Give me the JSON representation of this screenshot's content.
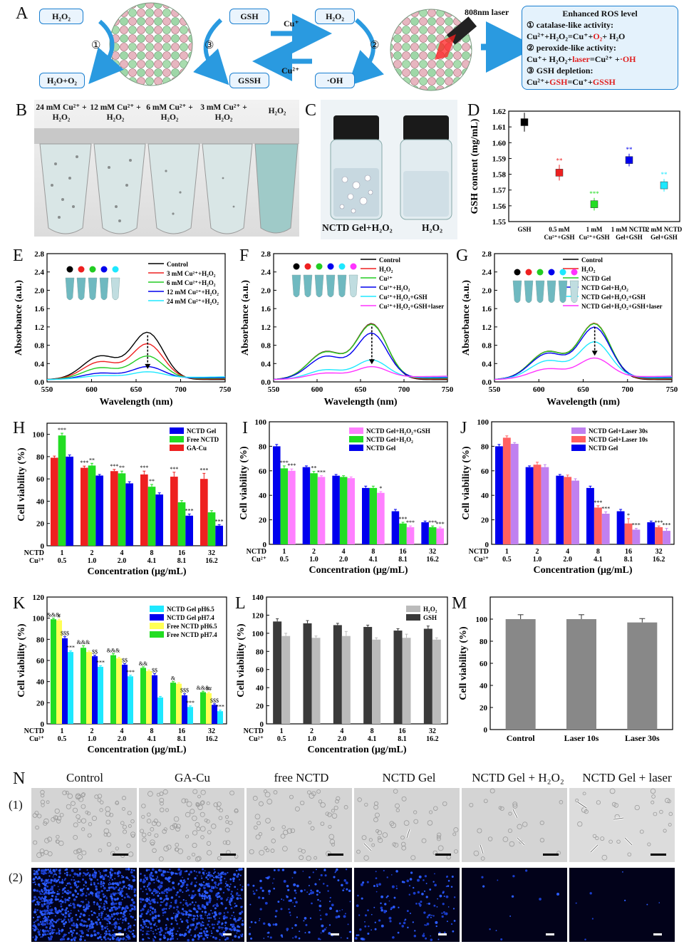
{
  "panels": {
    "A": "A",
    "B": "B",
    "C": "C",
    "D": "D",
    "E": "E",
    "F": "F",
    "G": "G",
    "H": "H",
    "I": "I",
    "J": "J",
    "K": "K",
    "L": "L",
    "M": "M",
    "N": "N"
  },
  "schematic": {
    "h2o2_left": "H₂O₂",
    "h2o_o2": "H₂O+O₂",
    "step1": "①",
    "step3": "③",
    "step2": "②",
    "gsh": "GSH",
    "gssh": "GSSH",
    "h2o2_right": "H₂O₂",
    "oh": "·OH",
    "cu_plus": "Cu⁺",
    "cu_2plus": "Cu²⁺",
    "laser": "808nm laser",
    "ros_title": "Enhanced ROS level",
    "ros_1": "① catalase-like activity:",
    "ros_1_eq_a": "Cu²⁺+H₂O₂=Cu⁺+",
    "ros_1_eq_red": "O₂",
    "ros_1_eq_b": "+ H₂O",
    "ros_2": "② peroxide-like activity:",
    "ros_2_eq_a": "Cu⁺+ H₂O₂+",
    "ros_2_eq_red": "laser",
    "ros_2_eq_b": "=Cu²⁺ +",
    "ros_2_eq_red2": "·OH",
    "ros_3": "③ GSH depletion:",
    "ros_3_eq_a": "Cu²⁺+",
    "ros_3_eq_red": "GSH",
    "ros_3_eq_b": "=Cu⁺+",
    "ros_3_eq_red2": "GSSH"
  },
  "panelB": {
    "labels": [
      "24 mM Cu²⁺ + H₂O₂",
      "12 mM Cu²⁺ + H₂O₂",
      "6 mM Cu²⁺ + H₂O₂",
      "3 mM Cu²⁺ + H₂O₂",
      "H₂O₂"
    ]
  },
  "panelC": {
    "left": "NCTD Gel+H₂O₂",
    "right": "H₂O₂"
  },
  "micrograph": {
    "labels": [
      "Control",
      "GA-Cu",
      "free NCTD",
      "NCTD Gel",
      "NCTD Gel + H₂O₂",
      "NCTD Gel + laser"
    ],
    "row1": "(1)",
    "row2": "(2)"
  },
  "colors": {
    "blue": "#0000ee",
    "green": "#22dd22",
    "red": "#ee2020",
    "pink": "#ff80ff",
    "cyan": "#1ee8ff",
    "yellow": "#ffff55",
    "salmon": "#ff6060",
    "lilac": "#c080f0",
    "darkgray": "#3a3a3a",
    "lightgray": "#bbbbbb",
    "gray": "#888888",
    "accent": "#1a7fd0"
  },
  "chart_data": [
    {
      "id": "D",
      "type": "scatter",
      "ylabel": "GSH content (mg/mL)",
      "ylim": [
        1.55,
        1.62
      ],
      "yticks": [
        "1.55",
        "1.56",
        "1.57",
        "1.58",
        "1.59",
        "1.60",
        "1.61",
        "1.62"
      ],
      "categories": [
        "GSH",
        "0.5 mM Cu²⁺+GSH",
        "1 mM Cu²⁺+GSH",
        "1 mM NCTD Gel+GSH",
        "2 mM NCTD Gel+GSH"
      ],
      "values": [
        1.613,
        1.581,
        1.561,
        1.589,
        1.573
      ],
      "errors": [
        0.006,
        0.005,
        0.004,
        0.004,
        0.004
      ],
      "sig": [
        "",
        "**",
        "***",
        "**",
        "**"
      ],
      "colors": [
        "#000000",
        "#ee2020",
        "#22dd22",
        "#0000ee",
        "#1ee8ff"
      ]
    },
    {
      "id": "E",
      "type": "line",
      "xlabel": "Wavelength (nm)",
      "ylabel": "Absorbance (a.u.)",
      "xlim": [
        550,
        750
      ],
      "ylim": [
        0,
        2.8
      ],
      "xticks": [
        "550",
        "600",
        "650",
        "700",
        "750"
      ],
      "yticks": [
        "0.0",
        "0.4",
        "0.8",
        "1.2",
        "1.6",
        "2.0",
        "2.4",
        "2.8"
      ],
      "series": [
        {
          "name": "Control",
          "color": "#000000",
          "scale": 1.2
        },
        {
          "name": "3 mM Cu²⁺+H₂O₂",
          "color": "#ee2020",
          "scale": 0.9
        },
        {
          "name": "6 mM Cu²⁺+H₂O₂",
          "color": "#22cc22",
          "scale": 0.58
        },
        {
          "name": "12 mM Cu²⁺+H₂O₂",
          "color": "#0000ee",
          "scale": 0.3
        },
        {
          "name": "24 mM Cu²⁺+H₂O₂",
          "color": "#1ee8ff",
          "scale": 0.16
        }
      ],
      "dots": [
        "#000000",
        "#ee2020",
        "#22cc22",
        "#0000ee",
        "#1ee8ff"
      ]
    },
    {
      "id": "F",
      "type": "line",
      "xlabel": "Wavelength (nm)",
      "ylabel": "Absorbance (a.u.)",
      "xlim": [
        550,
        750
      ],
      "ylim": [
        0,
        2.8
      ],
      "xticks": [
        "550",
        "600",
        "650",
        "700",
        "750"
      ],
      "yticks": [
        "0.0",
        "0.4",
        "0.8",
        "1.2",
        "1.6",
        "2.0",
        "2.4",
        "2.8"
      ],
      "series": [
        {
          "name": "Control",
          "color": "#000000",
          "scale": 1.42
        },
        {
          "name": "H₂O₂",
          "color": "#ee2020",
          "scale": 1.4
        },
        {
          "name": "Cu²⁺",
          "color": "#22cc22",
          "scale": 1.38
        },
        {
          "name": "Cu²⁺+H₂O₂",
          "color": "#0000ee",
          "scale": 1.15
        },
        {
          "name": "Cu²⁺+H₂O₂+GSH",
          "color": "#1ee8ff",
          "scale": 0.46
        },
        {
          "name": "Cu²⁺+H₂O₂+GSH+laser",
          "color": "#ff33ff",
          "scale": 0.28
        }
      ],
      "dots": [
        "#000000",
        "#ee2020",
        "#22cc22",
        "#0000ee",
        "#1ee8ff",
        "#ff33ff"
      ]
    },
    {
      "id": "G",
      "type": "line",
      "xlabel": "Wavelength (nm)",
      "ylabel": "Absorbance (a.u.)",
      "xlim": [
        550,
        750
      ],
      "ylim": [
        0,
        2.8
      ],
      "xticks": [
        "550",
        "600",
        "650",
        "700",
        "750"
      ],
      "yticks": [
        "0.0",
        "0.4",
        "0.8",
        "1.2",
        "1.6",
        "2.0",
        "2.4",
        "2.8"
      ],
      "series": [
        {
          "name": "Control",
          "color": "#000000",
          "scale": 1.42
        },
        {
          "name": "H₂O₂",
          "color": "#ee2020",
          "scale": 1.42
        },
        {
          "name": "NCTD Gel",
          "color": "#22cc22",
          "scale": 1.4
        },
        {
          "name": "NCTD Gel+H₂O₂",
          "color": "#0000ee",
          "scale": 1.3
        },
        {
          "name": "NCTD Gel+H₂O₂+GSH",
          "color": "#1ee8ff",
          "scale": 0.92
        },
        {
          "name": "NCTD Gel+H₂O₂+GSH+laser",
          "color": "#ff33ff",
          "scale": 0.5
        }
      ],
      "dots": [
        "#000000",
        "#ee2020",
        "#22cc22",
        "#0000ee",
        "#1ee8ff",
        "#ff33ff"
      ]
    },
    {
      "id": "H",
      "type": "bar",
      "xlabel": "Concentration (μg/mL)",
      "ylabel": "Cell viability (%)",
      "ylim": [
        0,
        110
      ],
      "yticks": [
        "0",
        "20",
        "40",
        "60",
        "80",
        "100"
      ],
      "row1_label": "NCTD",
      "row2_label": "Cu²⁺",
      "categories": [
        "1",
        "2",
        "4",
        "8",
        "16",
        "32"
      ],
      "categories2": [
        "0.5",
        "1.0",
        "2.0",
        "4.1",
        "8.1",
        "16.2"
      ],
      "series": [
        {
          "name": "GA-Cu",
          "color": "#ee2020",
          "values": [
            79,
            70,
            67,
            64,
            62,
            60
          ],
          "errors": [
            1.5,
            1.5,
            1.5,
            3,
            4,
            5
          ],
          "sig": [
            "",
            "***",
            "***",
            "***",
            "***",
            "***"
          ]
        },
        {
          "name": "Free NCTD",
          "color": "#22dd22",
          "values": [
            99,
            72,
            65,
            53,
            39,
            30
          ],
          "errors": [
            2,
            2,
            2,
            2,
            1.5,
            1.5
          ],
          "sig": [
            "***",
            "**",
            "**",
            "**",
            "",
            ""
          ]
        },
        {
          "name": "NCTD Gel",
          "color": "#0000ee",
          "values": [
            80,
            63,
            56,
            46,
            27,
            18
          ],
          "errors": [
            1.5,
            1,
            1.5,
            1.5,
            1.5,
            1
          ],
          "sig": [
            "",
            "",
            "",
            "",
            "***",
            "***"
          ]
        }
      ],
      "legend_order": [
        "NCTD Gel",
        "Free NCTD",
        "GA-Cu"
      ]
    },
    {
      "id": "I",
      "type": "bar",
      "xlabel": "Concentration (μg/mL)",
      "ylabel": "Cell viability (%)",
      "ylim": [
        0,
        100
      ],
      "yticks": [
        "0",
        "20",
        "40",
        "60",
        "80",
        "100"
      ],
      "row1_label": "NCTD",
      "row2_label": "Cu²⁺",
      "categories": [
        "1",
        "2",
        "4",
        "8",
        "16",
        "32"
      ],
      "categories2": [
        "0.5",
        "1.0",
        "2.0",
        "4.1",
        "8.1",
        "16.2"
      ],
      "series": [
        {
          "name": "NCTD Gel",
          "color": "#0000ee",
          "values": [
            80,
            63,
            56,
            46,
            27,
            18
          ],
          "errors": [
            1.5,
            1,
            1,
            1.5,
            1.5,
            1
          ],
          "sig": [
            "",
            "",
            "",
            "",
            "",
            ""
          ]
        },
        {
          "name": "NCTD Gel+H₂O₂",
          "color": "#22dd22",
          "values": [
            62,
            58,
            55,
            46,
            17,
            14
          ],
          "errors": [
            2,
            1.5,
            1,
            1.5,
            1,
            1
          ],
          "sig": [
            "***",
            "**",
            "",
            "",
            "***",
            "***"
          ]
        },
        {
          "name": "NCTD Gel+H₂O₂+GSH",
          "color": "#ff80ff",
          "values": [
            60,
            55,
            54,
            42,
            14,
            13
          ],
          "errors": [
            1.5,
            1,
            1,
            1,
            1,
            1
          ],
          "sig": [
            "***",
            "***",
            "",
            "*",
            "***",
            "***"
          ]
        }
      ],
      "legend_order": [
        "NCTD Gel+H₂O₂+GSH",
        "NCTD Gel+H₂O₂",
        "NCTD Gel"
      ]
    },
    {
      "id": "J",
      "type": "bar",
      "xlabel": "Concentration (μg/mL)",
      "ylabel": "Cell viability (%)",
      "ylim": [
        0,
        100
      ],
      "yticks": [
        "0",
        "20",
        "40",
        "60",
        "80",
        "100"
      ],
      "row1_label": "NCTD",
      "row2_label": "Cu²⁺",
      "categories": [
        "1",
        "2",
        "4",
        "8",
        "16",
        "32"
      ],
      "categories2": [
        "0.5",
        "1.0",
        "2.0",
        "4.1",
        "8.1",
        "16.2"
      ],
      "series": [
        {
          "name": "NCTD Gel",
          "color": "#0000ee",
          "values": [
            80,
            63,
            56,
            46,
            27,
            18
          ],
          "errors": [
            1.5,
            1,
            1,
            1.5,
            1.5,
            1
          ],
          "sig": [
            "",
            "",
            "",
            "",
            "",
            ""
          ]
        },
        {
          "name": "NCTD Gel+Laser 10s",
          "color": "#ff6060",
          "values": [
            87,
            65,
            55,
            30,
            17,
            14
          ],
          "errors": [
            1.5,
            2,
            1.5,
            1.5,
            4,
            1
          ],
          "sig": [
            "",
            "",
            "",
            "***",
            "*",
            "***"
          ]
        },
        {
          "name": "NCTD Gel+Laser 30s",
          "color": "#c080f0",
          "values": [
            82,
            63,
            52,
            25,
            12,
            11
          ],
          "errors": [
            1,
            2,
            1.5,
            1.5,
            1,
            2
          ],
          "sig": [
            "",
            "",
            "",
            "***",
            "***",
            "***"
          ]
        }
      ],
      "legend_order": [
        "NCTD Gel+Laser 30s",
        "NCTD Gel+Laser 10s",
        "NCTD Gel"
      ]
    },
    {
      "id": "K",
      "type": "bar",
      "xlabel": "Concentration (μg/mL)",
      "ylabel": "Cell viability (%)",
      "ylim": [
        0,
        120
      ],
      "yticks": [
        "0",
        "20",
        "40",
        "60",
        "80",
        "100",
        "120"
      ],
      "row1_label": "NCTD",
      "row2_label": "Cu²⁺",
      "categories": [
        "1",
        "2",
        "4",
        "8",
        "16",
        "32"
      ],
      "categories2": [
        "0.5",
        "1.0",
        "2.0",
        "4.1",
        "8.1",
        "16.2"
      ],
      "series": [
        {
          "name": "Free NCTD pH7.4",
          "color": "#22dd22",
          "values": [
            99,
            72,
            65,
            53,
            39,
            30
          ],
          "errors": [
            1,
            2,
            1.5,
            1,
            1,
            1
          ],
          "sig": [
            "&&&",
            "&&&",
            "&&&",
            "&&",
            "&",
            "&&&"
          ]
        },
        {
          "name": "Free NCTD pH6.5",
          "color": "#ffff55",
          "values": [
            98,
            68,
            62,
            50,
            38,
            29
          ],
          "errors": [
            1,
            1,
            1,
            1,
            1,
            1
          ],
          "sig": [
            "#",
            "",
            "",
            "",
            "",
            "##"
          ]
        },
        {
          "name": "NCTD Gel pH7.4",
          "color": "#0000ee",
          "values": [
            81,
            64,
            56,
            46,
            27,
            18
          ],
          "errors": [
            1.5,
            1,
            1,
            1.5,
            1.5,
            1
          ],
          "sig": [
            "$$$",
            "$$",
            "$$",
            "$$",
            "$$$",
            "$$$"
          ]
        },
        {
          "name": "NCTD Gel pH6.5",
          "color": "#1ee8ff",
          "values": [
            68,
            54,
            45,
            25,
            16,
            12
          ],
          "errors": [
            1,
            1,
            1,
            1,
            1,
            1
          ],
          "sig": [
            "***",
            "***",
            "***",
            "",
            "***",
            "***"
          ]
        }
      ],
      "legend_order": [
        "NCTD Gel pH6.5",
        "NCTD Gel pH7.4",
        "Free NCTD pH6.5",
        "Free NCTD pH7.4"
      ]
    },
    {
      "id": "L",
      "type": "bar",
      "xlabel": "Concentration (μg/mL)",
      "ylabel": "Cell viability (%)",
      "ylim": [
        0,
        140
      ],
      "yticks": [
        "0",
        "20",
        "40",
        "60",
        "80",
        "100",
        "120",
        "140"
      ],
      "row1_label": "NCTD",
      "row2_label": "Cu²⁺",
      "categories": [
        "1",
        "2",
        "4",
        "8",
        "16",
        "32"
      ],
      "categories2": [
        "0.5",
        "1.0",
        "2.0",
        "4.1",
        "8.1",
        "16.2"
      ],
      "series": [
        {
          "name": "GSH",
          "color": "#3a3a3a",
          "values": [
            113,
            111,
            109,
            107,
            103,
            105
          ],
          "errors": [
            3,
            3,
            2,
            2,
            2,
            3
          ],
          "sig": [
            "",
            "",
            "",
            "",
            "",
            ""
          ]
        },
        {
          "name": "H₂O₂",
          "color": "#bbbbbb",
          "values": [
            97,
            95,
            97,
            93,
            95,
            93
          ],
          "errors": [
            3,
            2,
            5,
            2,
            4,
            2
          ],
          "sig": [
            "",
            "",
            "",
            "",
            "",
            ""
          ]
        }
      ],
      "legend_order": [
        "H₂O₂",
        "GSH"
      ]
    },
    {
      "id": "M",
      "type": "bar",
      "ylabel": "Cell viability (%)",
      "ylim": [
        0,
        120
      ],
      "yticks": [
        "0",
        "20",
        "40",
        "60",
        "80",
        "100"
      ],
      "categories": [
        "Control",
        "Laser 10s",
        "Laser 30s"
      ],
      "values": [
        100,
        100,
        97
      ],
      "errors": [
        4,
        4,
        3.5
      ],
      "color": "#888888"
    }
  ]
}
